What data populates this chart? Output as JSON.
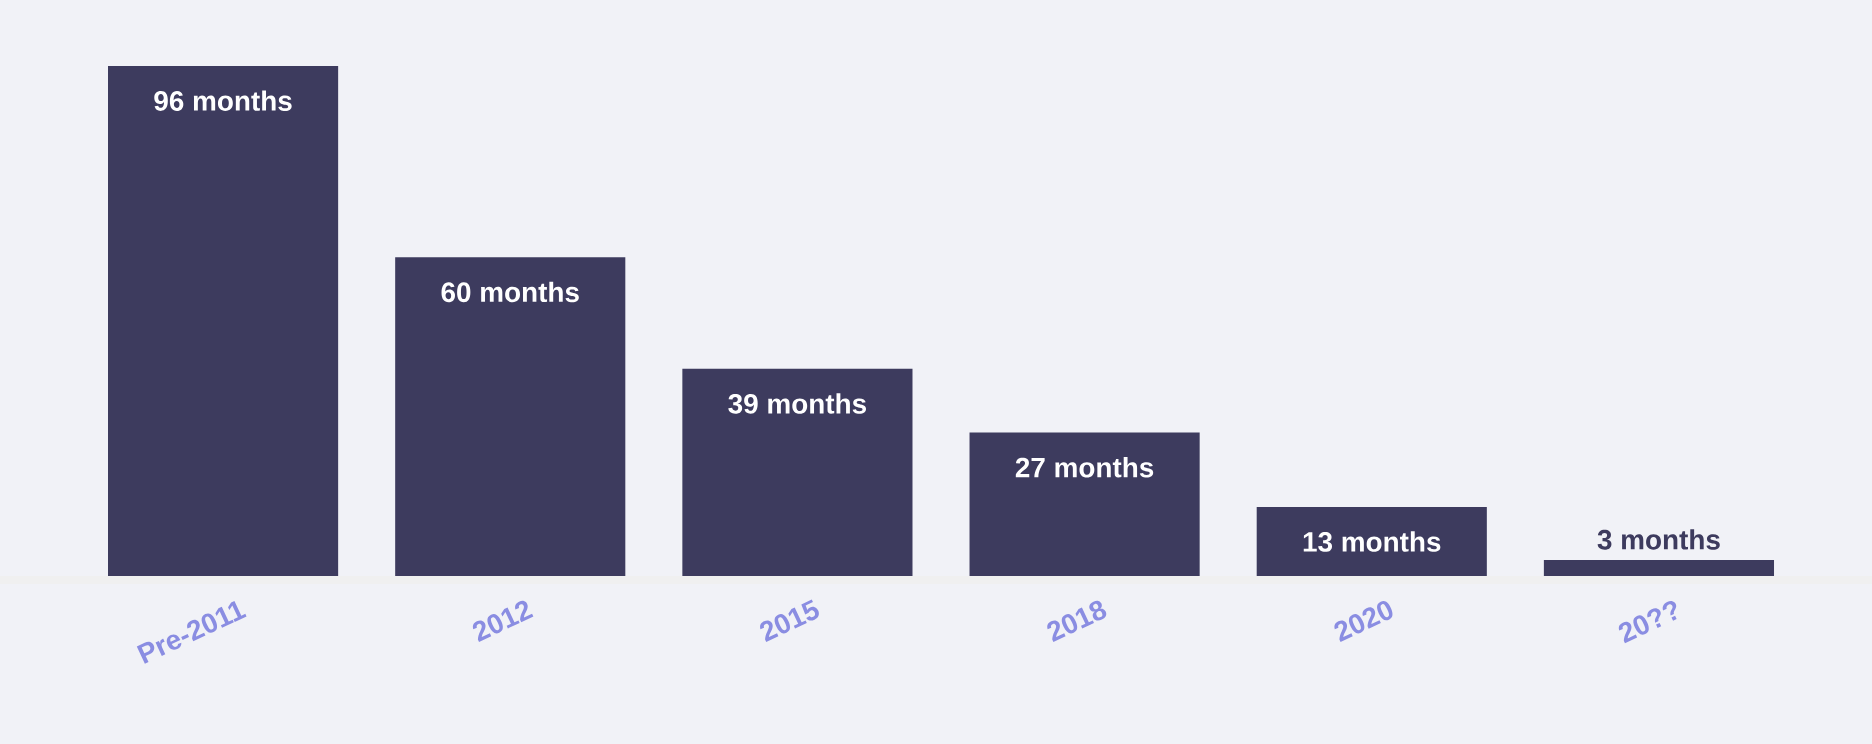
{
  "chart_data": {
    "type": "bar",
    "categories": [
      "Pre-2011",
      "2012",
      "2015",
      "2018",
      "2020",
      "20??"
    ],
    "values": [
      96,
      60,
      39,
      27,
      13,
      3
    ],
    "value_labels": [
      "96 months",
      "60 months",
      "39 months",
      "27 months",
      "13 months",
      "3 months"
    ],
    "color": "#3d3b5e",
    "tick_labels": "x"
  }
}
